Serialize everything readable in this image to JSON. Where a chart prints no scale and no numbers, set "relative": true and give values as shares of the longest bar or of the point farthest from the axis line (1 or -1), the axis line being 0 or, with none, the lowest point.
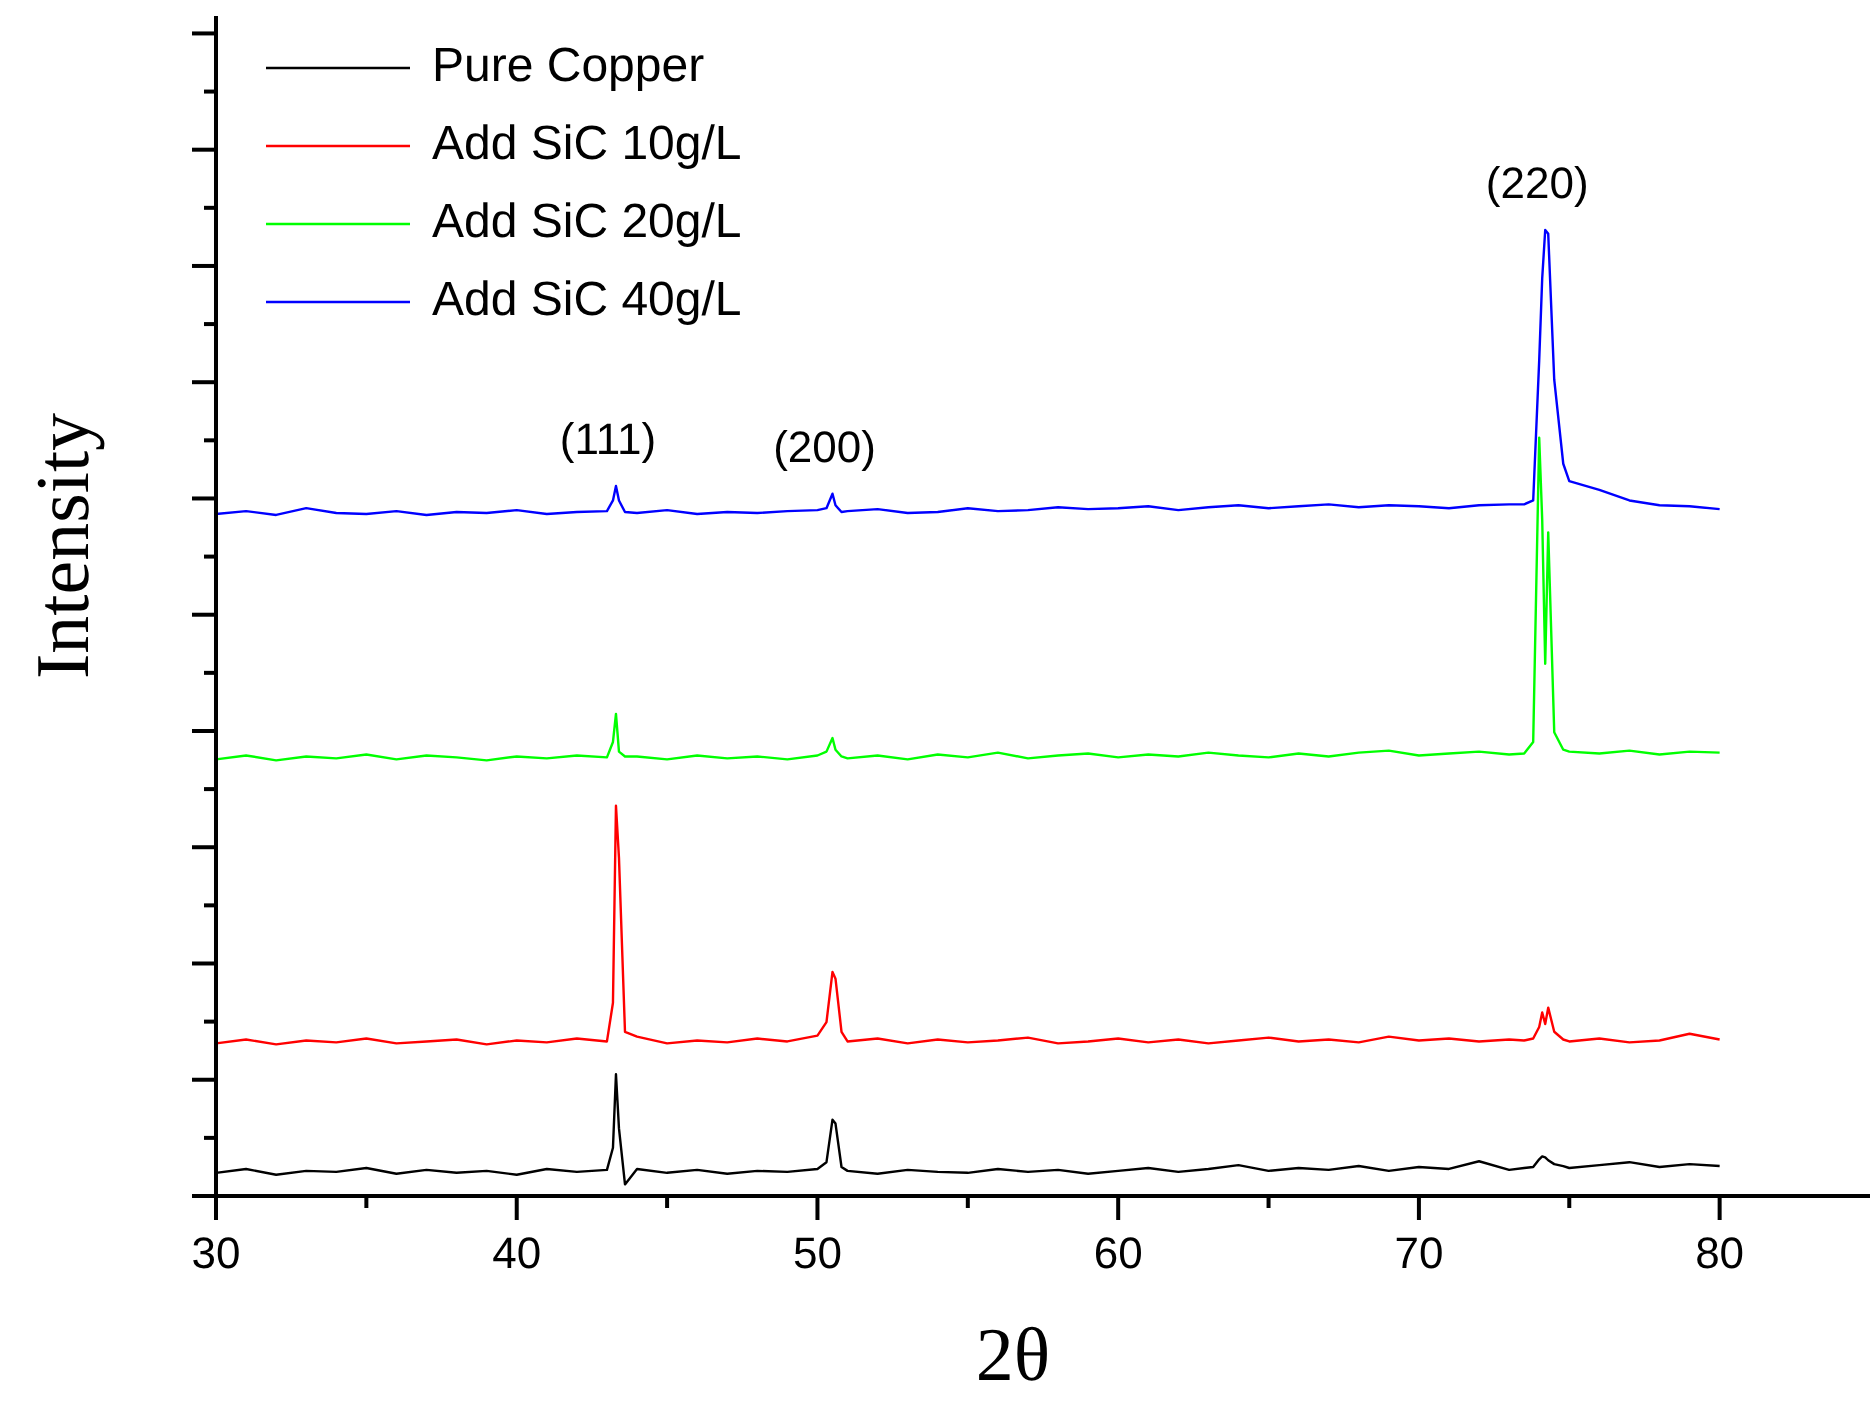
{
  "chart_data": {
    "type": "line",
    "xlabel": "2θ",
    "ylabel": "Intensity",
    "relative": true,
    "xlim": [
      30,
      85
    ],
    "xticks": [
      30,
      {
        "value": 35,
        "label": null
      },
      40,
      {
        "value": 45,
        "label": null
      },
      50,
      {
        "value": 55,
        "label": null
      },
      60,
      {
        "value": 65,
        "label": null
      },
      70,
      {
        "value": 75,
        "label": null
      },
      80
    ],
    "x": [
      30,
      31,
      32,
      33,
      34,
      35,
      36,
      37,
      38,
      39,
      40,
      41,
      42,
      43,
      43.2,
      43.3,
      43.4,
      43.6,
      44,
      45,
      46,
      47,
      48,
      49,
      50,
      50.3,
      50.5,
      50.6,
      50.8,
      51,
      52,
      53,
      54,
      55,
      56,
      57,
      58,
      59,
      60,
      61,
      62,
      63,
      64,
      65,
      66,
      67,
      68,
      69,
      70,
      71,
      72,
      73,
      73.5,
      73.8,
      74,
      74.1,
      74.2,
      74.3,
      74.5,
      74.8,
      75,
      76,
      77,
      78,
      79,
      80
    ],
    "series": [
      {
        "name": "Pure Copper",
        "color": "#000000",
        "values": [
          0.024,
          0.028,
          0.022,
          0.026,
          0.025,
          0.029,
          0.023,
          0.027,
          0.024,
          0.026,
          0.022,
          0.028,
          0.025,
          0.027,
          0.05,
          0.126,
          0.07,
          0.012,
          0.028,
          0.024,
          0.027,
          0.023,
          0.026,
          0.025,
          0.028,
          0.035,
          0.079,
          0.075,
          0.03,
          0.026,
          0.023,
          0.027,
          0.025,
          0.024,
          0.028,
          0.025,
          0.027,
          0.023,
          0.026,
          0.029,
          0.025,
          0.028,
          0.032,
          0.026,
          0.029,
          0.027,
          0.031,
          0.026,
          0.03,
          0.028,
          0.036,
          0.027,
          0.029,
          0.03,
          0.038,
          0.041,
          0.04,
          0.037,
          0.033,
          0.031,
          0.029,
          0.032,
          0.035,
          0.03,
          0.033,
          0.031
        ]
      },
      {
        "name": "Add SiC 10g/L",
        "color": "#ff0000",
        "values": [
          0.158,
          0.162,
          0.157,
          0.161,
          0.159,
          0.163,
          0.158,
          0.16,
          0.162,
          0.157,
          0.161,
          0.159,
          0.163,
          0.16,
          0.2,
          0.404,
          0.35,
          0.17,
          0.165,
          0.158,
          0.161,
          0.159,
          0.163,
          0.16,
          0.166,
          0.18,
          0.232,
          0.225,
          0.17,
          0.16,
          0.163,
          0.158,
          0.162,
          0.159,
          0.161,
          0.164,
          0.158,
          0.16,
          0.163,
          0.159,
          0.162,
          0.158,
          0.161,
          0.164,
          0.16,
          0.162,
          0.159,
          0.165,
          0.161,
          0.163,
          0.16,
          0.162,
          0.161,
          0.163,
          0.175,
          0.19,
          0.178,
          0.195,
          0.17,
          0.162,
          0.16,
          0.163,
          0.159,
          0.161,
          0.168,
          0.162
        ]
      },
      {
        "name": "Add SiC 20g/L",
        "color": "#00ff00",
        "values": [
          0.452,
          0.456,
          0.451,
          0.455,
          0.453,
          0.457,
          0.452,
          0.456,
          0.454,
          0.451,
          0.455,
          0.453,
          0.456,
          0.454,
          0.47,
          0.499,
          0.46,
          0.455,
          0.455,
          0.452,
          0.456,
          0.453,
          0.455,
          0.452,
          0.456,
          0.46,
          0.474,
          0.462,
          0.455,
          0.453,
          0.456,
          0.452,
          0.457,
          0.454,
          0.459,
          0.453,
          0.456,
          0.458,
          0.454,
          0.457,
          0.455,
          0.459,
          0.456,
          0.454,
          0.458,
          0.455,
          0.459,
          0.461,
          0.456,
          0.458,
          0.46,
          0.457,
          0.458,
          0.47,
          0.785,
          0.7,
          0.551,
          0.687,
          0.48,
          0.462,
          0.46,
          0.458,
          0.461,
          0.457,
          0.46,
          0.459
        ]
      },
      {
        "name": "Add SiC 40g/L",
        "color": "#0000ff",
        "values": [
          0.706,
          0.709,
          0.705,
          0.712,
          0.707,
          0.706,
          0.709,
          0.705,
          0.708,
          0.707,
          0.71,
          0.706,
          0.708,
          0.709,
          0.72,
          0.735,
          0.72,
          0.708,
          0.707,
          0.71,
          0.706,
          0.708,
          0.707,
          0.709,
          0.71,
          0.712,
          0.727,
          0.715,
          0.708,
          0.709,
          0.711,
          0.707,
          0.708,
          0.712,
          0.709,
          0.71,
          0.713,
          0.711,
          0.712,
          0.714,
          0.71,
          0.713,
          0.715,
          0.712,
          0.714,
          0.716,
          0.713,
          0.715,
          0.714,
          0.712,
          0.715,
          0.716,
          0.716,
          0.72,
          0.865,
          0.95,
          1,
          0.996,
          0.845,
          0.758,
          0.74,
          0.731,
          0.72,
          0.715,
          0.714,
          0.711
        ]
      }
    ],
    "annotations": [
      {
        "text": "(111)",
        "x": 43.3,
        "y": 0.735
      },
      {
        "text": "(200)",
        "x": 50.5,
        "y": 0.727
      },
      {
        "text": "(220)",
        "x": 74.2,
        "y": 1
      }
    ],
    "legend": "top left",
    "grid": false,
    "marker": "none",
    "line_style": "solid"
  }
}
